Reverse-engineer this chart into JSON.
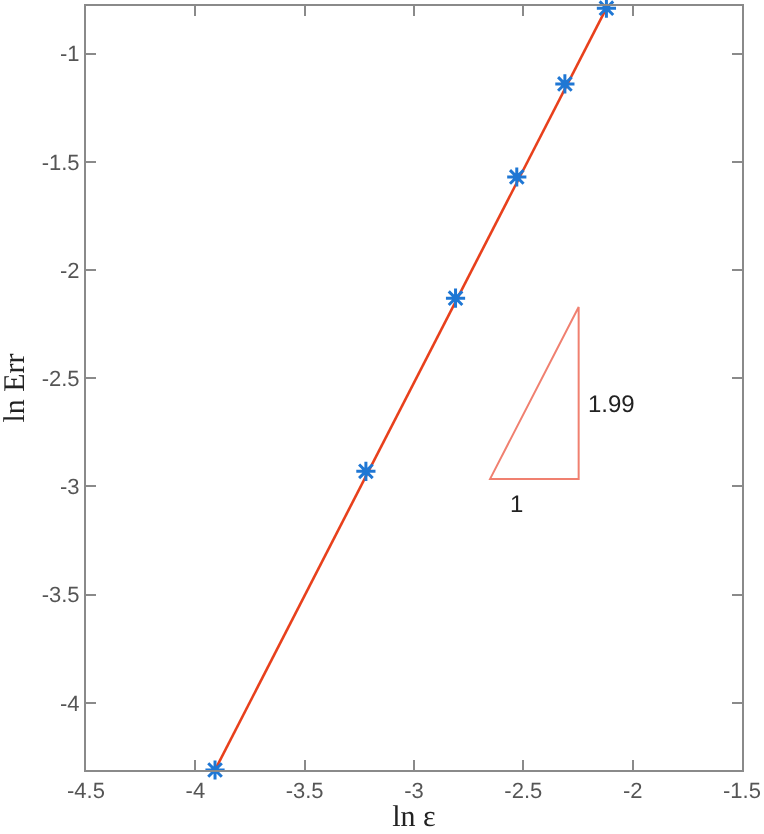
{
  "chart_data": {
    "type": "scatter",
    "xlabel": "ln ε",
    "ylabel": "ln Err",
    "xlim": [
      -4.5,
      -1.5
    ],
    "ylim": [
      -4.31,
      -0.78
    ],
    "xticks": [
      -4.5,
      -4,
      -3.5,
      -3,
      -2.5,
      -2,
      -1.5
    ],
    "yticks": [
      -4,
      -3.5,
      -3,
      -2.5,
      -2,
      -1.5,
      -1
    ],
    "series": [
      {
        "type": "line",
        "color": "#e8401c",
        "line_style": "solid",
        "marker": "none",
        "x": [
          -3.91,
          -2.12
        ],
        "values": [
          -4.31,
          -0.79
        ]
      },
      {
        "color": "#1f77d4",
        "marker": "cross",
        "x": [
          -3.91,
          -3.22,
          -2.81,
          -2.53,
          -2.31,
          -2.12
        ],
        "values": [
          -4.31,
          -2.93,
          -2.13,
          -1.57,
          -1.14,
          -0.79
        ]
      }
    ],
    "annotations": [
      "1.99",
      "1"
    ]
  }
}
